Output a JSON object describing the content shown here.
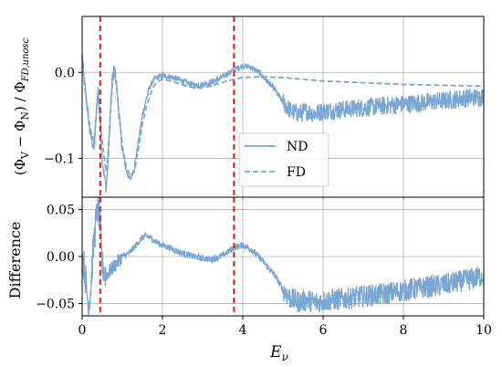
{
  "chart_data": [
    {
      "type": "line",
      "panel": "top",
      "ylabel_parts": {
        "open": "(Φ",
        "s1": "V",
        "minus": " − Φ",
        "s2": "N",
        "mid": ") / Φ",
        "s3": "FD,unosc"
      },
      "xlim": [
        0,
        10
      ],
      "ylim": [
        -0.145,
        0.065
      ],
      "grid": true,
      "x_ticks": [
        0,
        2,
        4,
        6,
        8,
        10
      ],
      "y_ticks": [
        -0.1,
        0.0
      ],
      "y_tick_labels": [
        "−0.1",
        "0.0"
      ],
      "legend_placement": "center",
      "series": [
        {
          "name": "ND",
          "style": "solid",
          "color": "#7aa6d3",
          "x": [
            0.0,
            0.05,
            0.1,
            0.15,
            0.2,
            0.25,
            0.3,
            0.35,
            0.4,
            0.45,
            0.5,
            0.55,
            0.6,
            0.65,
            0.7,
            0.75,
            0.8,
            0.85,
            0.9,
            1.0,
            1.1,
            1.2,
            1.3,
            1.4,
            1.5,
            1.6,
            1.7,
            1.8,
            1.9,
            2.0,
            2.2,
            2.4,
            2.6,
            2.8,
            3.0,
            3.2,
            3.4,
            3.6,
            3.8,
            4.0,
            4.2,
            4.4,
            4.6,
            4.8,
            5.0,
            5.2,
            5.4,
            5.6,
            5.8,
            6.0,
            6.5,
            7.0,
            7.5,
            8.0,
            8.5,
            9.0,
            9.5,
            10.0
          ],
          "y": [
            0.02,
            -0.01,
            -0.03,
            -0.05,
            -0.07,
            -0.08,
            -0.09,
            -0.05,
            -0.02,
            -0.06,
            -0.1,
            -0.12,
            -0.135,
            -0.1,
            -0.05,
            -0.01,
            0.005,
            -0.01,
            -0.04,
            -0.09,
            -0.115,
            -0.125,
            -0.11,
            -0.08,
            -0.05,
            -0.03,
            -0.015,
            -0.008,
            -0.005,
            -0.004,
            -0.005,
            -0.008,
            -0.012,
            -0.015,
            -0.014,
            -0.012,
            -0.008,
            -0.002,
            0.003,
            0.008,
            0.006,
            0.0,
            -0.01,
            -0.02,
            -0.035,
            -0.045,
            -0.048,
            -0.045,
            -0.048,
            -0.045,
            -0.043,
            -0.041,
            -0.039,
            -0.037,
            -0.035,
            -0.033,
            -0.03,
            -0.028
          ]
        },
        {
          "name": "FD",
          "style": "dashed",
          "color": "#7aa6d3",
          "x": [
            0.0,
            0.05,
            0.1,
            0.15,
            0.2,
            0.25,
            0.3,
            0.35,
            0.4,
            0.45,
            0.5,
            0.55,
            0.6,
            0.65,
            0.7,
            0.75,
            0.8,
            0.85,
            0.9,
            1.0,
            1.1,
            1.2,
            1.3,
            1.4,
            1.5,
            1.6,
            1.7,
            1.8,
            1.9,
            2.0,
            2.2,
            2.4,
            2.6,
            2.8,
            3.0,
            3.2,
            3.4,
            3.6,
            3.8,
            4.0,
            4.5,
            5.0,
            6.0,
            7.0,
            8.0,
            9.0,
            10.0
          ],
          "y": [
            0.02,
            -0.01,
            -0.03,
            -0.05,
            -0.065,
            -0.075,
            -0.08,
            -0.05,
            -0.02,
            -0.05,
            -0.08,
            -0.1,
            -0.115,
            -0.09,
            -0.05,
            -0.015,
            0.0,
            -0.01,
            -0.04,
            -0.085,
            -0.11,
            -0.12,
            -0.115,
            -0.09,
            -0.06,
            -0.04,
            -0.025,
            -0.015,
            -0.01,
            -0.008,
            -0.01,
            -0.013,
            -0.016,
            -0.018,
            -0.018,
            -0.016,
            -0.013,
            -0.01,
            -0.008,
            -0.006,
            -0.005,
            -0.006,
            -0.01,
            -0.012,
            -0.014,
            -0.015,
            -0.016
          ]
        }
      ],
      "vlines": [
        0.45,
        3.78
      ],
      "vline_color": "#e8191a"
    },
    {
      "type": "line",
      "panel": "bottom",
      "ylabel": "Difference",
      "xlabel_parts": {
        "base": "E",
        "sub": "ν"
      },
      "xlim": [
        0,
        10
      ],
      "ylim": [
        -0.063,
        0.063
      ],
      "grid": true,
      "x_ticks": [
        0,
        2,
        4,
        6,
        8,
        10
      ],
      "x_tick_labels": [
        "0",
        "2",
        "4",
        "6",
        "8",
        "10"
      ],
      "y_ticks": [
        -0.05,
        0.0,
        0.05
      ],
      "y_tick_labels": [
        "−0.05",
        "0.00",
        "0.05"
      ],
      "series": [
        {
          "name": "",
          "style": "solid",
          "color": "#7aa6d3",
          "x": [
            0.0,
            0.05,
            0.1,
            0.15,
            0.2,
            0.25,
            0.3,
            0.35,
            0.4,
            0.45,
            0.5,
            0.6,
            0.7,
            0.8,
            0.9,
            1.0,
            1.1,
            1.2,
            1.3,
            1.4,
            1.5,
            1.6,
            1.7,
            1.8,
            1.9,
            2.0,
            2.2,
            2.4,
            2.6,
            2.8,
            3.0,
            3.2,
            3.4,
            3.6,
            3.8,
            4.0,
            4.2,
            4.4,
            4.6,
            4.8,
            5.0,
            5.2,
            5.4,
            5.6,
            5.8,
            6.0,
            6.5,
            7.0,
            7.5,
            8.0,
            8.5,
            9.0,
            9.5,
            10.0
          ],
          "y": [
            0.0,
            -0.01,
            -0.03,
            -0.05,
            -0.04,
            -0.01,
            0.02,
            0.04,
            0.055,
            0.03,
            -0.01,
            -0.02,
            -0.015,
            -0.01,
            -0.005,
            0.0,
            0.002,
            0.005,
            0.01,
            0.015,
            0.02,
            0.022,
            0.02,
            0.017,
            0.014,
            0.012,
            0.009,
            0.005,
            0.002,
            0.0,
            -0.002,
            -0.003,
            -0.001,
            0.004,
            0.01,
            0.012,
            0.008,
            0.0,
            -0.01,
            -0.02,
            -0.035,
            -0.045,
            -0.048,
            -0.046,
            -0.049,
            -0.047,
            -0.045,
            -0.042,
            -0.04,
            -0.036,
            -0.033,
            -0.03,
            -0.026,
            -0.02
          ]
        }
      ],
      "vlines": [
        0.45,
        3.78
      ],
      "vline_color": "#e8191a"
    }
  ]
}
